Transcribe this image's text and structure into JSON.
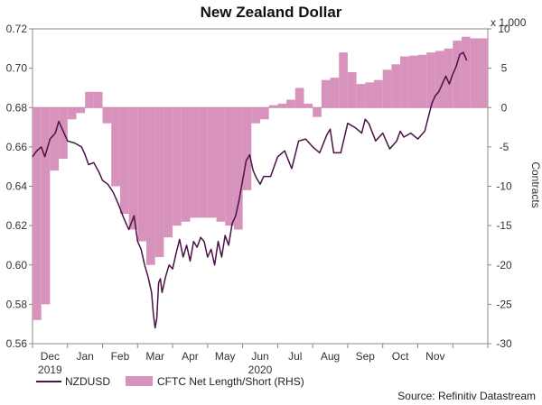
{
  "chart_data": {
    "type": "line",
    "title": "New Zealand Dollar",
    "source": "Source: Refinitiv Datastream",
    "left_axis": {
      "ylim": [
        0.56,
        0.72
      ],
      "ticks": [
        0.56,
        0.58,
        0.6,
        0.62,
        0.64,
        0.66,
        0.68,
        0.7,
        0.72
      ],
      "tick_labels": [
        "0.56",
        "0.58",
        "0.60",
        "0.62",
        "0.64",
        "0.66",
        "0.68",
        "0.70",
        "0.72"
      ]
    },
    "right_axis": {
      "label": "Contracts",
      "multiplier_label": "x 1,000",
      "ylim": [
        -30,
        10
      ],
      "ticks": [
        -30,
        -25,
        -20,
        -15,
        -10,
        -5,
        0,
        5,
        10
      ],
      "tick_labels": [
        "-30",
        "-25",
        "-20",
        "-15",
        "-10",
        "-5",
        "0",
        "5",
        "10"
      ]
    },
    "x_axis": {
      "range": [
        0,
        13
      ],
      "months": [
        {
          "label": "Dec",
          "pos": 0.5
        },
        {
          "label": "Jan",
          "pos": 1.5
        },
        {
          "label": "Feb",
          "pos": 2.5
        },
        {
          "label": "Mar",
          "pos": 3.5
        },
        {
          "label": "Apr",
          "pos": 4.5
        },
        {
          "label": "May",
          "pos": 5.5
        },
        {
          "label": "Jun",
          "pos": 6.5
        },
        {
          "label": "Jul",
          "pos": 7.5
        },
        {
          "label": "Aug",
          "pos": 8.5
        },
        {
          "label": "Sep",
          "pos": 9.5
        },
        {
          "label": "Oct",
          "pos": 10.5
        },
        {
          "label": "Nov",
          "pos": 11.5
        }
      ],
      "years": [
        {
          "label": "2019",
          "pos": 0.5
        },
        {
          "label": "2020",
          "pos": 6.5
        }
      ]
    },
    "legend": [
      "NZDUSD",
      "CFTC Net Length/Short (RHS)"
    ],
    "series": [
      {
        "name": "NZDUSD",
        "axis": "left",
        "color": "#4a1248",
        "x": [
          0.0,
          0.12,
          0.25,
          0.35,
          0.5,
          0.65,
          0.75,
          0.9,
          1.0,
          1.2,
          1.4,
          1.5,
          1.6,
          1.75,
          1.9,
          2.0,
          2.15,
          2.3,
          2.45,
          2.6,
          2.75,
          2.9,
          3.0,
          3.1,
          3.2,
          3.3,
          3.4,
          3.45,
          3.5,
          3.55,
          3.6,
          3.65,
          3.7,
          3.8,
          3.9,
          4.0,
          4.1,
          4.2,
          4.3,
          4.4,
          4.5,
          4.6,
          4.7,
          4.8,
          4.9,
          5.0,
          5.1,
          5.2,
          5.3,
          5.4,
          5.5,
          5.6,
          5.7,
          5.8,
          5.9,
          6.0,
          6.1,
          6.2,
          6.3,
          6.4,
          6.5,
          6.6,
          6.8,
          7.0,
          7.2,
          7.4,
          7.6,
          7.8,
          8.0,
          8.2,
          8.4,
          8.5,
          8.6,
          8.8,
          9.0,
          9.2,
          9.4,
          9.5,
          9.6,
          9.8,
          10.0,
          10.2,
          10.4,
          10.5,
          10.6,
          10.8,
          11.0,
          11.2,
          11.4,
          11.5,
          11.6,
          11.8,
          11.9,
          12.0,
          12.1,
          12.2,
          12.3,
          12.4
        ],
        "y": [
          0.655,
          0.658,
          0.66,
          0.655,
          0.664,
          0.667,
          0.673,
          0.667,
          0.663,
          0.662,
          0.66,
          0.656,
          0.651,
          0.652,
          0.647,
          0.643,
          0.641,
          0.637,
          0.631,
          0.624,
          0.618,
          0.625,
          0.612,
          0.608,
          0.6,
          0.594,
          0.586,
          0.575,
          0.568,
          0.573,
          0.591,
          0.593,
          0.586,
          0.594,
          0.6,
          0.598,
          0.606,
          0.613,
          0.604,
          0.61,
          0.602,
          0.612,
          0.609,
          0.614,
          0.612,
          0.604,
          0.608,
          0.6,
          0.612,
          0.604,
          0.615,
          0.61,
          0.621,
          0.625,
          0.633,
          0.643,
          0.653,
          0.656,
          0.648,
          0.644,
          0.641,
          0.645,
          0.645,
          0.655,
          0.658,
          0.649,
          0.663,
          0.664,
          0.66,
          0.657,
          0.666,
          0.669,
          0.657,
          0.657,
          0.672,
          0.67,
          0.667,
          0.674,
          0.672,
          0.663,
          0.667,
          0.659,
          0.663,
          0.668,
          0.665,
          0.667,
          0.664,
          0.668,
          0.682,
          0.686,
          0.688,
          0.696,
          0.692,
          0.697,
          0.701,
          0.707,
          0.708,
          0.704
        ]
      },
      {
        "name": "CFTC Net Length/Short (RHS)",
        "axis": "right",
        "color": "#d893bd",
        "x": [
          0.0,
          0.25,
          0.5,
          0.75,
          1.0,
          1.25,
          1.5,
          1.75,
          2.0,
          2.25,
          2.5,
          2.75,
          3.0,
          3.25,
          3.5,
          3.75,
          4.0,
          4.25,
          4.5,
          4.75,
          5.0,
          5.25,
          5.5,
          5.75,
          6.0,
          6.25,
          6.5,
          6.75,
          7.0,
          7.25,
          7.5,
          7.75,
          8.0,
          8.25,
          8.5,
          8.75,
          9.0,
          9.25,
          9.5,
          9.75,
          10.0,
          10.25,
          10.5,
          10.75,
          11.0,
          11.25,
          11.5,
          11.75,
          12.0,
          12.25,
          12.5
        ],
        "y": [
          -27.0,
          -25.0,
          -8.0,
          -6.5,
          -1.5,
          -0.7,
          2.0,
          2.0,
          -2.0,
          -10.0,
          -13.5,
          -15.5,
          -17.0,
          -20.0,
          -19.0,
          -16.5,
          -15.0,
          -14.5,
          -14.0,
          -14.0,
          -14.0,
          -14.5,
          -15.0,
          -15.5,
          -10.5,
          -2.0,
          -1.5,
          0.3,
          0.5,
          1.0,
          2.5,
          0.5,
          -1.2,
          3.5,
          3.8,
          7.0,
          4.5,
          3.0,
          3.2,
          3.5,
          4.8,
          5.5,
          6.5,
          6.6,
          6.7,
          7.0,
          7.2,
          7.5,
          8.5,
          9.0,
          8.8
        ]
      }
    ]
  }
}
